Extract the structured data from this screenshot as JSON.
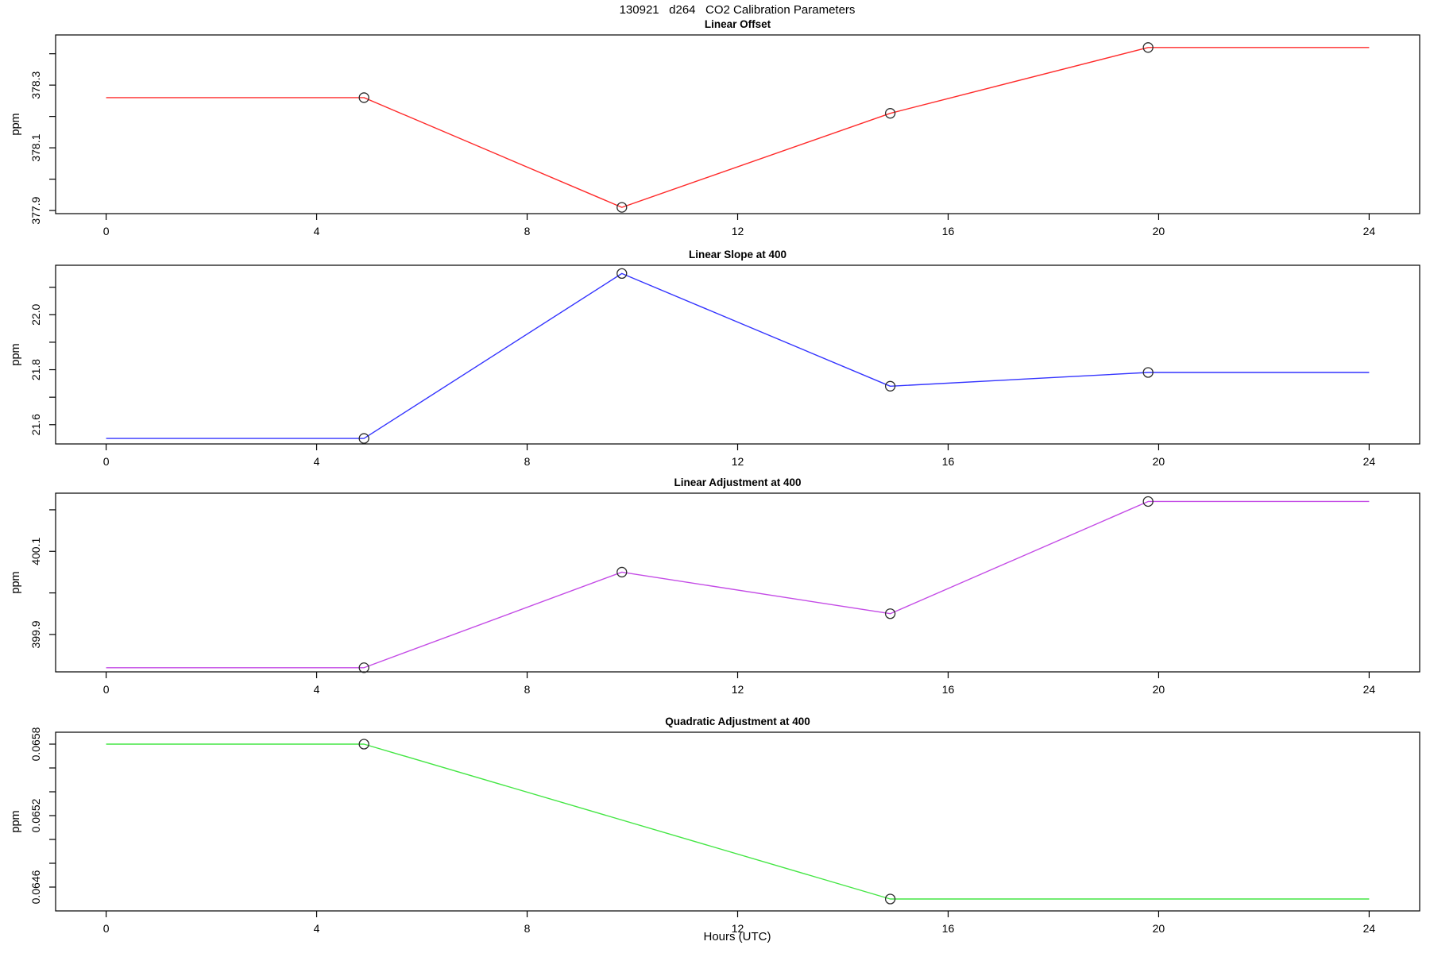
{
  "title": "130921   d264   CO2 Calibration Parameters",
  "xlabel": "Hours (UTC)",
  "xticks": [
    0,
    4,
    8,
    12,
    16,
    20,
    24
  ],
  "xlim": [
    0,
    24
  ],
  "marker_color": "#2a2a2a",
  "chart_data": [
    {
      "type": "line",
      "title": "Linear Offset",
      "ylabel": "ppm",
      "color": "#ff2b2b",
      "x": [
        0,
        4.9,
        9.8,
        14.9,
        19.8,
        24
      ],
      "y": [
        378.26,
        378.26,
        377.91,
        378.21,
        378.42,
        378.42
      ],
      "markers": {
        "x": [
          4.9,
          9.8,
          14.9,
          19.8
        ],
        "y": [
          378.26,
          377.91,
          378.21,
          378.42
        ]
      },
      "ylim": [
        377.89,
        378.46
      ],
      "yticks": [
        {
          "v": 377.9,
          "label": "377.9"
        },
        {
          "v": 378.0,
          "label": ""
        },
        {
          "v": 378.1,
          "label": "378.1"
        },
        {
          "v": 378.2,
          "label": ""
        },
        {
          "v": 378.3,
          "label": "378.3"
        },
        {
          "v": 378.4,
          "label": ""
        }
      ]
    },
    {
      "type": "line",
      "title": "Linear Slope at 400",
      "ylabel": "ppm",
      "color": "#3434ff",
      "x": [
        0,
        4.9,
        9.8,
        14.9,
        19.8,
        24
      ],
      "y": [
        21.55,
        21.55,
        22.15,
        21.74,
        21.79,
        21.79
      ],
      "markers": {
        "x": [
          4.9,
          9.8,
          14.9,
          19.8
        ],
        "y": [
          21.55,
          22.15,
          21.74,
          21.79
        ]
      },
      "ylim": [
        21.53,
        22.18
      ],
      "yticks": [
        {
          "v": 21.6,
          "label": "21.6"
        },
        {
          "v": 21.7,
          "label": ""
        },
        {
          "v": 21.8,
          "label": "21.8"
        },
        {
          "v": 21.9,
          "label": ""
        },
        {
          "v": 22.0,
          "label": "22.0"
        },
        {
          "v": 22.1,
          "label": ""
        }
      ]
    },
    {
      "type": "line",
      "title": "Linear Adjustment at 400",
      "ylabel": "ppm",
      "color": "#c44ce6",
      "x": [
        0,
        4.9,
        9.8,
        14.9,
        19.8,
        24
      ],
      "y": [
        399.82,
        399.82,
        400.05,
        399.95,
        400.22,
        400.22
      ],
      "markers": {
        "x": [
          4.9,
          9.8,
          14.9,
          19.8
        ],
        "y": [
          399.82,
          400.05,
          399.95,
          400.22
        ]
      },
      "ylim": [
        399.81,
        400.24
      ],
      "yticks": [
        {
          "v": 399.9,
          "label": "399.9"
        },
        {
          "v": 400.0,
          "label": ""
        },
        {
          "v": 400.1,
          "label": "400.1"
        },
        {
          "v": 400.2,
          "label": ""
        }
      ]
    },
    {
      "type": "line",
      "title": "Quadratic Adjustment at 400",
      "ylabel": "ppm",
      "color": "#44e644",
      "x": [
        0,
        4.9,
        14.9,
        24
      ],
      "y": [
        0.0658,
        0.0658,
        0.0645,
        0.0645
      ],
      "markers": {
        "x": [
          4.9,
          14.9
        ],
        "y": [
          0.0658,
          0.0645
        ]
      },
      "ylim": [
        0.0644,
        0.0659
      ],
      "yticks": [
        {
          "v": 0.0646,
          "label": "0.0646"
        },
        {
          "v": 0.0648,
          "label": ""
        },
        {
          "v": 0.065,
          "label": ""
        },
        {
          "v": 0.0652,
          "label": "0.0652"
        },
        {
          "v": 0.0654,
          "label": ""
        },
        {
          "v": 0.0656,
          "label": ""
        },
        {
          "v": 0.0658,
          "label": "0.0658"
        }
      ]
    }
  ]
}
